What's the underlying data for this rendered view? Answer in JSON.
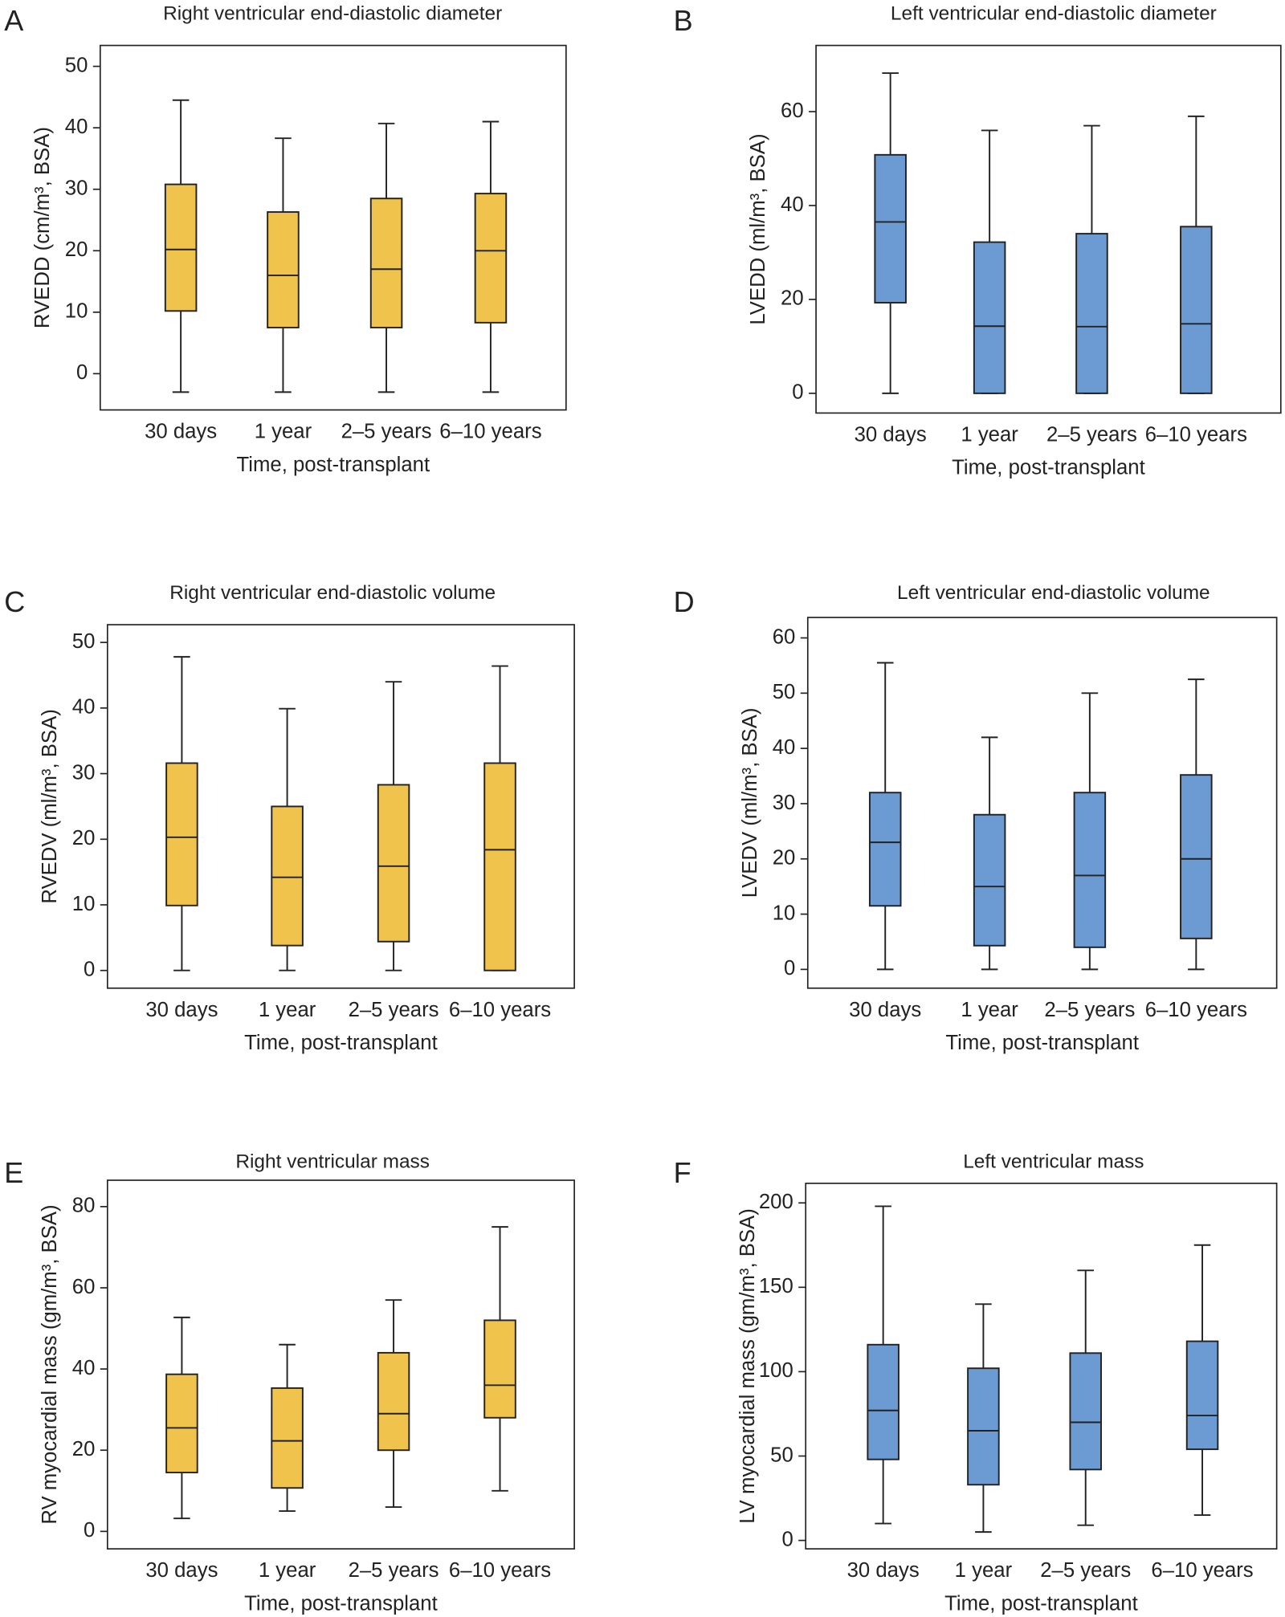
{
  "chart_data": [
    {
      "type": "box",
      "panel": "A",
      "title": "Right ventricular end-diastolic diameter",
      "ylabel": "RVEDD (cm/m³, BSA)",
      "xlabel": "Time, post-transplant",
      "categories": [
        "30 days",
        "1 year",
        "2–5 years",
        "6–10 years"
      ],
      "color": "#f0c44c",
      "ylim": [
        -5.9,
        53.4
      ],
      "yticks": [
        0,
        10,
        20,
        30,
        40,
        50
      ],
      "series": [
        {
          "min": -3,
          "q1": 10.2,
          "median": 20.2,
          "q3": 30.8,
          "max": 44.5
        },
        {
          "min": -3,
          "q1": 7.5,
          "median": 16,
          "q3": 26.3,
          "max": 38.3
        },
        {
          "min": -3,
          "q1": 7.5,
          "median": 17,
          "q3": 28.5,
          "max": 40.7
        },
        {
          "min": -3,
          "q1": 8.3,
          "median": 20,
          "q3": 29.3,
          "max": 41
        }
      ]
    },
    {
      "type": "box",
      "panel": "B",
      "title": "Left ventricular end-diastolic diameter",
      "ylabel": "LVEDD (ml/m³, BSA)",
      "xlabel": "Time, post-transplant",
      "categories": [
        "30 days",
        "1 year",
        "2–5 years",
        "6–10 years"
      ],
      "color": "#6b9bd2",
      "ylim": [
        -4.2,
        74.1
      ],
      "yticks": [
        0,
        20,
        40,
        60
      ],
      "series": [
        {
          "min": 0,
          "q1": 19.3,
          "median": 36.5,
          "q3": 50.8,
          "max": 68.2
        },
        {
          "min": 0,
          "q1": 0,
          "median": 14.3,
          "q3": 32.2,
          "max": 56
        },
        {
          "min": 0,
          "q1": 0,
          "median": 14.2,
          "q3": 34,
          "max": 57
        },
        {
          "min": 0,
          "q1": 0,
          "median": 14.8,
          "q3": 35.5,
          "max": 59
        }
      ]
    },
    {
      "type": "box",
      "panel": "C",
      "title": "Right ventricular end-diastolic volume",
      "ylabel": "RVEDV (ml/m³, BSA)",
      "xlabel": "Time, post-transplant",
      "categories": [
        "30 days",
        "1 year",
        "2–5 years",
        "6–10 years"
      ],
      "color": "#f0c44c",
      "ylim": [
        -2.7,
        52.7
      ],
      "yticks": [
        0,
        10,
        20,
        30,
        40,
        50
      ],
      "series": [
        {
          "min": 0,
          "q1": 9.9,
          "median": 20.3,
          "q3": 31.6,
          "max": 47.8
        },
        {
          "min": 0,
          "q1": 3.8,
          "median": 14.2,
          "q3": 25,
          "max": 39.9
        },
        {
          "min": 0,
          "q1": 4.4,
          "median": 15.9,
          "q3": 28.3,
          "max": 44
        },
        {
          "min": 0,
          "q1": 0,
          "median": 18.4,
          "q3": 31.6,
          "max": 46.4
        }
      ]
    },
    {
      "type": "box",
      "panel": "D",
      "title": "Left ventricular end-diastolic volume",
      "ylabel": "LVEDV (ml/m³, BSA)",
      "xlabel": "Time, post-transplant",
      "categories": [
        "30 days",
        "1 year",
        "2–5 years",
        "6–10 years"
      ],
      "color": "#6b9bd2",
      "ylim": [
        -3.4,
        63.7
      ],
      "yticks": [
        0,
        10,
        20,
        30,
        40,
        50,
        60
      ],
      "series": [
        {
          "min": 0,
          "q1": 11.5,
          "median": 23,
          "q3": 32,
          "max": 55.5
        },
        {
          "min": 0,
          "q1": 4.3,
          "median": 15,
          "q3": 28,
          "max": 42
        },
        {
          "min": 0,
          "q1": 4,
          "median": 17,
          "q3": 32,
          "max": 50
        },
        {
          "min": 0,
          "q1": 5.6,
          "median": 20,
          "q3": 35.2,
          "max": 52.5
        }
      ]
    },
    {
      "type": "box",
      "panel": "E",
      "title": "Right ventricular mass",
      "ylabel": "RV myocardial mass (gm/m³, BSA)",
      "xlabel": "Time, post-transplant",
      "categories": [
        "30 days",
        "1 year",
        "2–5 years",
        "6–10 years"
      ],
      "color": "#f0c44c",
      "ylim": [
        -4.3,
        86.5
      ],
      "yticks": [
        0,
        20,
        40,
        60,
        80
      ],
      "series": [
        {
          "min": 3.2,
          "q1": 14.5,
          "median": 25.5,
          "q3": 38.7,
          "max": 52.7
        },
        {
          "min": 5,
          "q1": 10.7,
          "median": 22.3,
          "q3": 35.3,
          "max": 46
        },
        {
          "min": 6,
          "q1": 20,
          "median": 29,
          "q3": 44,
          "max": 57
        },
        {
          "min": 10,
          "q1": 28,
          "median": 36,
          "q3": 52,
          "max": 75
        }
      ]
    },
    {
      "type": "box",
      "panel": "F",
      "title": "Left ventricular mass",
      "ylabel": "LV myocardial mass (gm/m³, BSA)",
      "xlabel": "Time, post-transplant",
      "categories": [
        "30 days",
        "1 year",
        "2–5 years",
        "6–10 years"
      ],
      "color": "#6b9bd2",
      "ylim": [
        -5,
        211.6
      ],
      "yticks": [
        0,
        50,
        100,
        150,
        200
      ],
      "series": [
        {
          "min": 10,
          "q1": 48,
          "median": 77,
          "q3": 116,
          "max": 198
        },
        {
          "min": 5,
          "q1": 33,
          "median": 65,
          "q3": 102,
          "max": 140
        },
        {
          "min": 9,
          "q1": 42,
          "median": 70,
          "q3": 111,
          "max": 160
        },
        {
          "min": 15,
          "q1": 54,
          "median": 74,
          "q3": 118,
          "max": 175
        }
      ]
    }
  ]
}
